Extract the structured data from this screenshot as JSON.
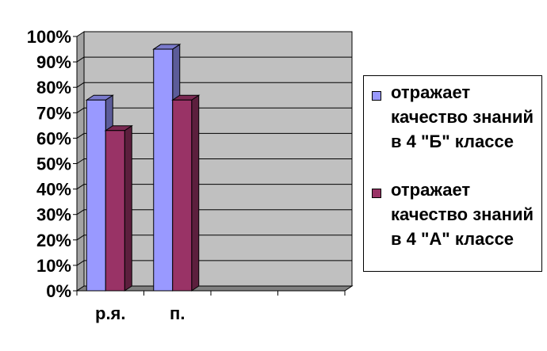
{
  "chart_data": {
    "type": "bar",
    "categories": [
      "р.я.",
      "п.",
      "",
      ""
    ],
    "series": [
      {
        "name": "отражает качество знаний в 4 \"Б\" классе",
        "values": [
          75,
          95,
          null,
          null
        ],
        "color": "#9999ff"
      },
      {
        "name": "отражает качество знаний в 4 \"А\" классе",
        "values": [
          63,
          75,
          null,
          null
        ],
        "color": "#993366"
      }
    ],
    "ylim": [
      0,
      100
    ],
    "yticks": [
      "0%",
      "10%",
      "20%",
      "30%",
      "40%",
      "50%",
      "60%",
      "70%",
      "80%",
      "90%",
      "100%"
    ],
    "grid": true,
    "three_d": true,
    "wall_color": "#c0c0c0",
    "floor_color": "#808080",
    "legend_position": "right"
  },
  "legend": {
    "items": [
      {
        "label": "отражает качество знаний в 4 \"Б\" классе",
        "color": "#9999ff"
      },
      {
        "label": "отражает качество знаний в 4 \"А\" классе",
        "color": "#993366"
      }
    ]
  }
}
